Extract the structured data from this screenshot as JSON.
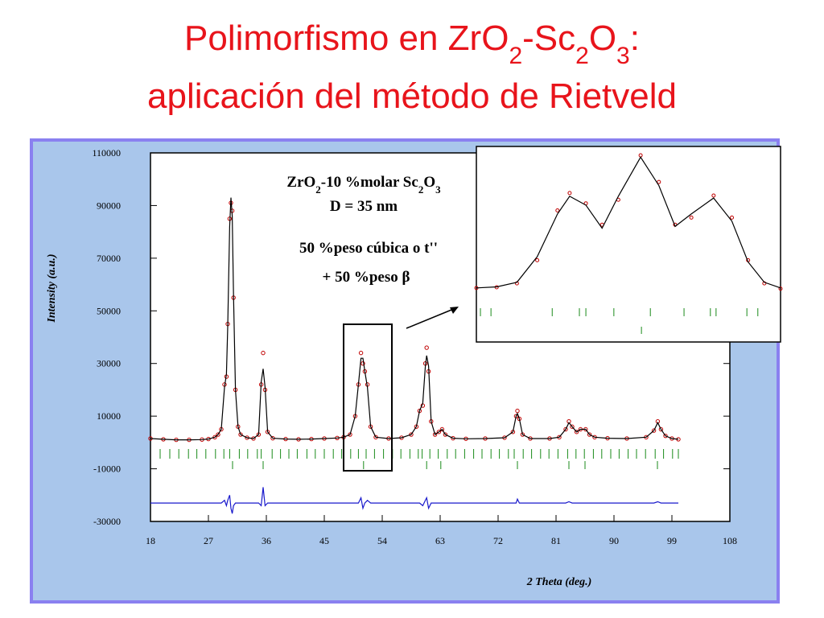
{
  "slide": {
    "title_parts": [
      "Polimorfismo en ZrO",
      "2",
      "-Sc",
      "2",
      "O",
      "3",
      ":"
    ],
    "title_line2": "aplicación del método de Rietveld"
  },
  "chart_data": [
    {
      "type": "line",
      "y_label": "Intensity (a.u.)",
      "x_label": "2 Theta (deg.)",
      "formula_parts": [
        "ZrO",
        "2",
        "-10 %molar Sc",
        "2",
        "O",
        "3"
      ],
      "annotations": [
        "D = 35 nm",
        "50 %peso cúbica o t''",
        "+ 50 %peso β"
      ],
      "xlim": [
        18,
        108
      ],
      "xticks": [
        18,
        27,
        36,
        45,
        54,
        63,
        72,
        81,
        90,
        99,
        108
      ],
      "ylim": [
        -30000,
        110000
      ],
      "yticks": [
        -30000,
        -10000,
        10000,
        30000,
        50000,
        70000,
        90000,
        110000
      ],
      "x": [
        18,
        20,
        22,
        24,
        26,
        27,
        28,
        28.5,
        29,
        29.5,
        29.8,
        30.0,
        30.3,
        30.5,
        30.7,
        30.9,
        31.2,
        31.6,
        32,
        33,
        34,
        34.8,
        35.2,
        35.5,
        35.8,
        36.2,
        37,
        39,
        41,
        43,
        45,
        47,
        48,
        49,
        49.8,
        50.3,
        50.7,
        51.0,
        51.3,
        51.7,
        52.2,
        53,
        55,
        57,
        58.5,
        59.3,
        59.8,
        60.3,
        60.7,
        60.9,
        61.2,
        61.6,
        62.2,
        62.8,
        63.3,
        63.8,
        65,
        67,
        70,
        73,
        74.3,
        74.8,
        75.0,
        75.3,
        75.8,
        77,
        80,
        81.5,
        82.5,
        83.0,
        83.5,
        84.2,
        84.8,
        85.6,
        86.2,
        87,
        89,
        92,
        95,
        96.2,
        96.8,
        97.3,
        98,
        99,
        100
      ],
      "series": [
        {
          "style": "markers",
          "color": "#c00000",
          "values": [
            1500,
            1200,
            1000,
            1000,
            1100,
            1300,
            2000,
            3000,
            5000,
            22000,
            25000,
            45000,
            85000,
            91000,
            88000,
            55000,
            20000,
            6000,
            3000,
            1800,
            1500,
            3000,
            22000,
            34000,
            20000,
            4000,
            1600,
            1300,
            1200,
            1300,
            1500,
            1700,
            2000,
            3000,
            10000,
            22000,
            34000,
            30000,
            27000,
            22000,
            6000,
            2000,
            1500,
            1800,
            3000,
            6000,
            12000,
            14000,
            30000,
            36000,
            27000,
            8000,
            3000,
            4000,
            5000,
            3000,
            1600,
            1400,
            1500,
            1800,
            4000,
            10000,
            12000,
            9000,
            3000,
            1500,
            1500,
            2000,
            5000,
            8000,
            6000,
            4000,
            5000,
            5000,
            3000,
            2000,
            1600,
            1500,
            2000,
            4500,
            8000,
            5000,
            2500,
            1500,
            1200
          ]
        },
        {
          "style": "line",
          "color": "#000000",
          "values": [
            1500,
            1200,
            1000,
            1000,
            1100,
            1300,
            2000,
            3000,
            5000,
            21000,
            26000,
            44000,
            82000,
            93000,
            86000,
            56000,
            20000,
            6000,
            3000,
            1800,
            1500,
            3000,
            23000,
            28000,
            21000,
            4000,
            1600,
            1300,
            1200,
            1300,
            1500,
            1700,
            2000,
            3000,
            10000,
            22000,
            32000,
            32000,
            27000,
            21000,
            6000,
            2000,
            1500,
            1800,
            3000,
            6000,
            12000,
            15000,
            29000,
            33000,
            29000,
            8000,
            3000,
            4000,
            5000,
            3000,
            1600,
            1400,
            1500,
            1800,
            4000,
            10000,
            11000,
            9000,
            3000,
            1500,
            1500,
            2000,
            5000,
            7500,
            6000,
            4000,
            5000,
            5000,
            3000,
            2000,
            1600,
            1500,
            2000,
            4500,
            7500,
            5000,
            2500,
            1500,
            1200
          ]
        },
        {
          "style": "line",
          "color": "#1a1acc",
          "values": [
            -23000,
            -23000,
            -23000,
            -23000,
            -23000,
            -23000,
            -23000,
            -23000,
            -23000,
            -22000,
            -24000,
            -22000,
            -20000,
            -25000,
            -27000,
            -24000,
            -23000,
            -23000,
            -23000,
            -23000,
            -23000,
            -23000,
            -24000,
            -17000,
            -24000,
            -23000,
            -23000,
            -23000,
            -23000,
            -23000,
            -23000,
            -23000,
            -23000,
            -23000,
            -23000,
            -23000,
            -21000,
            -25000,
            -23000,
            -22000,
            -23000,
            -23000,
            -23000,
            -23000,
            -23000,
            -23000,
            -23000,
            -24000,
            -22000,
            -21000,
            -25000,
            -23000,
            -23000,
            -23000,
            -23000,
            -23000,
            -23000,
            -23000,
            -23000,
            -23000,
            -23000,
            -23000,
            -21500,
            -23000,
            -23000,
            -23000,
            -23000,
            -23000,
            -23000,
            -22500,
            -23000,
            -23000,
            -23000,
            -23000,
            -23000,
            -23000,
            -23000,
            -23000,
            -23000,
            -23000,
            -22500,
            -23000,
            -23000,
            -23000,
            -23000
          ]
        }
      ],
      "reflections": [
        {
          "color": "#1a8a1a",
          "x": [
            19.5,
            21,
            22.4,
            23.9,
            25.2,
            26.6,
            28.1,
            29.4,
            30.3,
            31.8,
            33.1,
            34.6,
            35.2,
            36.9,
            38.2,
            39.5,
            40.8,
            42.3,
            43.6,
            45,
            46.4,
            47.7,
            49.1,
            50.3,
            51.5,
            52.8,
            54.2,
            55.6,
            56.9,
            58.3,
            59.6,
            60.2,
            61.4,
            62.7,
            64.1,
            65.4,
            66.8,
            68.2,
            69.5,
            70.9,
            72.2,
            73.6,
            74.5,
            75.9,
            77.2,
            78.6,
            79.9,
            81.3,
            82.8,
            84.1,
            85.4,
            86.8,
            88.1,
            89.5,
            90.8,
            92.2,
            93.5,
            94.9,
            96.4,
            97.7,
            99.1,
            100
          ]
        },
        {
          "color": "#1a8a1a",
          "x": [
            30.75,
            35.5,
            51.1,
            60.9,
            63.1,
            75,
            83,
            85.5,
            96.75
          ]
        }
      ]
    },
    {
      "type": "line",
      "xlim": [
        48,
        55.5
      ],
      "ylim": [
        -15000,
        40000
      ],
      "x": [
        48,
        48.5,
        49,
        49.5,
        50,
        50.3,
        50.7,
        51.1,
        51.5,
        52.05,
        52.5,
        52.9,
        53.3,
        53.85,
        54.3,
        54.7,
        55.1,
        55.5
      ],
      "series": [
        {
          "style": "markers",
          "color": "#c00000",
          "values": [
            200,
            400,
            1500,
            8000,
            22000,
            26900,
            24000,
            18000,
            25000,
            37500,
            30000,
            18000,
            20000,
            26200,
            20000,
            8000,
            1500,
            0
          ]
        },
        {
          "style": "line",
          "color": "#000000",
          "values": [
            200,
            500,
            1800,
            9000,
            21000,
            26000,
            23500,
            17000,
            26000,
            37000,
            29000,
            17500,
            21000,
            25500,
            19000,
            7500,
            1800,
            200
          ]
        }
      ],
      "reflections": [
        {
          "color": "#1a8a1a",
          "x": [
            48.1,
            48.36,
            49.87,
            50.54,
            50.7,
            51.39,
            52.29,
            53.12,
            53.77,
            53.91,
            54.67,
            54.94
          ]
        },
        {
          "color": "#1a8a1a",
          "x": [
            52.07
          ]
        }
      ]
    }
  ]
}
